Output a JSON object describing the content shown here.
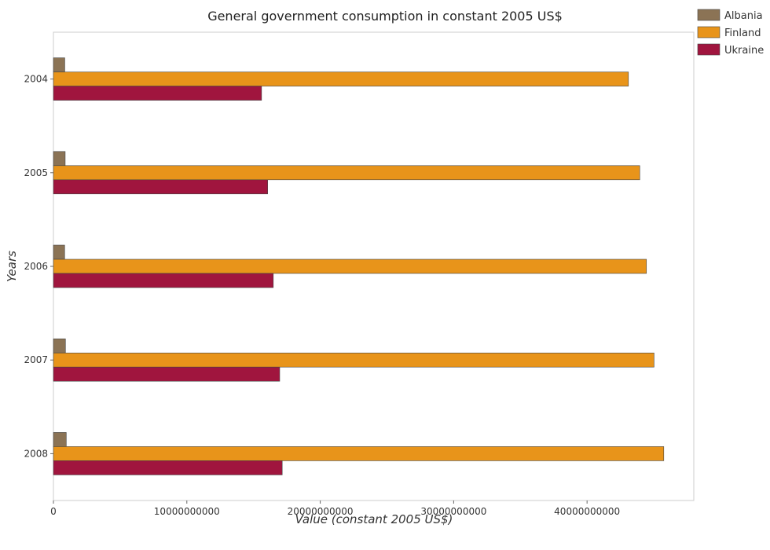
{
  "chart_data": {
    "type": "bar",
    "orientation": "horizontal",
    "title": "General government consumption in constant 2005 US$",
    "xlabel": "Value (constant 2005 US$)",
    "ylabel": "Years",
    "categories": [
      "2004",
      "2005",
      "2006",
      "2007",
      "2008"
    ],
    "xlim": [
      0,
      48000000000
    ],
    "xticks": [
      0,
      10000000000,
      20000000000,
      30000000000,
      40000000000
    ],
    "xtick_labels": [
      "0",
      "10000000000",
      "20000000000",
      "30000000000",
      "40000000000"
    ],
    "legend_position": "top-right",
    "series": [
      {
        "name": "Albania",
        "color": "#8b7355",
        "values": [
          850000000,
          880000000,
          840000000,
          900000000,
          960000000
        ]
      },
      {
        "name": "Finland",
        "color": "#e8941a",
        "values": [
          43100000000,
          43950000000,
          44450000000,
          45020000000,
          45750000000
        ]
      },
      {
        "name": "Ukraine",
        "color": "#a0153e",
        "values": [
          15600000000,
          16060000000,
          16480000000,
          16960000000,
          17150000000
        ]
      }
    ]
  }
}
